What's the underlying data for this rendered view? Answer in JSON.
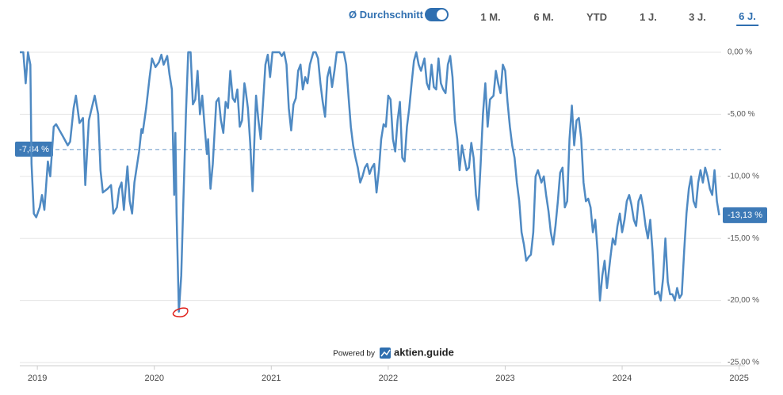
{
  "toolbar": {
    "average_toggle": "Ø Durchschnitt",
    "ranges": [
      "1 M.",
      "6 M.",
      "YTD",
      "1 J.",
      "3 J.",
      "6 J."
    ]
  },
  "footer": {
    "powered_by": "Powered by",
    "brand": "aktien.guide"
  },
  "chart_data": {
    "type": "line",
    "x": [
      2018.85,
      2018.88,
      2018.9,
      2018.92,
      2018.94,
      2018.95,
      2018.97,
      2018.99,
      2019.02,
      2019.04,
      2019.06,
      2019.09,
      2019.11,
      2019.14,
      2019.16,
      2019.19,
      2019.22,
      2019.26,
      2019.28,
      2019.31,
      2019.33,
      2019.36,
      2019.39,
      2019.41,
      2019.44,
      2019.47,
      2019.49,
      2019.52,
      2019.54,
      2019.56,
      2019.6,
      2019.63,
      2019.65,
      2019.68,
      2019.7,
      2019.72,
      2019.74,
      2019.77,
      2019.79,
      2019.81,
      2019.83,
      2019.87,
      2019.89,
      2019.9,
      2019.93,
      2019.96,
      2019.98,
      2020.01,
      2020.04,
      2020.06,
      2020.08,
      2020.11,
      2020.13,
      2020.15,
      2020.17,
      2020.18,
      2020.19,
      2020.21,
      2020.23,
      2020.25,
      2020.27,
      2020.29,
      2020.31,
      2020.33,
      2020.35,
      2020.37,
      2020.39,
      2020.41,
      2020.43,
      2020.45,
      2020.46,
      2020.48,
      2020.5,
      2020.53,
      2020.55,
      2020.57,
      2020.59,
      2020.61,
      2020.63,
      2020.65,
      2020.67,
      2020.69,
      2020.71,
      2020.73,
      2020.75,
      2020.77,
      2020.78,
      2020.8,
      2020.82,
      2020.84,
      2020.86,
      2020.87,
      2020.89,
      2020.91,
      2020.93,
      2020.95,
      2020.97,
      2020.99,
      2021.01,
      2021.03,
      2021.05,
      2021.07,
      2021.09,
      2021.11,
      2021.13,
      2021.15,
      2021.17,
      2021.19,
      2021.21,
      2021.23,
      2021.25,
      2021.27,
      2021.29,
      2021.31,
      2021.33,
      2021.36,
      2021.38,
      2021.4,
      2021.42,
      2021.44,
      2021.46,
      2021.48,
      2021.5,
      2021.52,
      2021.54,
      2021.56,
      2021.58,
      2021.6,
      2021.62,
      2021.64,
      2021.66,
      2021.68,
      2021.7,
      2021.72,
      2021.74,
      2021.76,
      2021.78,
      2021.8,
      2021.82,
      2021.84,
      2021.86,
      2021.88,
      2021.9,
      2021.92,
      2021.94,
      2021.96,
      2021.98,
      2022.0,
      2022.02,
      2022.04,
      2022.06,
      2022.08,
      2022.1,
      2022.12,
      2022.14,
      2022.16,
      2022.18,
      2022.2,
      2022.22,
      2022.24,
      2022.26,
      2022.28,
      2022.31,
      2022.33,
      2022.35,
      2022.37,
      2022.39,
      2022.41,
      2022.43,
      2022.45,
      2022.47,
      2022.49,
      2022.51,
      2022.53,
      2022.55,
      2022.57,
      2022.59,
      2022.61,
      2022.63,
      2022.65,
      2022.67,
      2022.69,
      2022.71,
      2022.73,
      2022.75,
      2022.77,
      2022.79,
      2022.81,
      2022.83,
      2022.85,
      2022.87,
      2022.9,
      2022.92,
      2022.94,
      2022.96,
      2022.98,
      2023.0,
      2023.02,
      2023.04,
      2023.06,
      2023.08,
      2023.1,
      2023.12,
      2023.14,
      2023.16,
      2023.18,
      2023.2,
      2023.22,
      2023.24,
      2023.26,
      2023.28,
      2023.31,
      2023.33,
      2023.35,
      2023.37,
      2023.39,
      2023.41,
      2023.43,
      2023.45,
      2023.47,
      2023.49,
      2023.51,
      2023.53,
      2023.55,
      2023.57,
      2023.59,
      2023.61,
      2023.63,
      2023.65,
      2023.67,
      2023.69,
      2023.71,
      2023.73,
      2023.75,
      2023.77,
      2023.79,
      2023.81,
      2023.83,
      2023.85,
      2023.87,
      2023.9,
      2023.92,
      2023.94,
      2023.96,
      2023.98,
      2024.0,
      2024.02,
      2024.04,
      2024.06,
      2024.08,
      2024.1,
      2024.12,
      2024.14,
      2024.16,
      2024.18,
      2024.2,
      2024.22,
      2024.24,
      2024.26,
      2024.28,
      2024.31,
      2024.33,
      2024.35,
      2024.37,
      2024.39,
      2024.41,
      2024.43,
      2024.45,
      2024.47,
      2024.49,
      2024.51,
      2024.53,
      2024.55,
      2024.57,
      2024.59,
      2024.61,
      2024.63,
      2024.65,
      2024.67,
      2024.69,
      2024.71,
      2024.73,
      2024.75,
      2024.77,
      2024.79,
      2024.81,
      2024.83
    ],
    "series": [
      {
        "color": "#4f8ac3",
        "values": [
          0,
          0,
          -2.5,
          0,
          -1,
          -9,
          -13,
          -13.3,
          -12.5,
          -11.5,
          -12.7,
          -8.8,
          -10,
          -6,
          -5.8,
          -6.3,
          -6.8,
          -7.5,
          -7.2,
          -4.5,
          -3.5,
          -5.7,
          -5.3,
          -10.7,
          -5.5,
          -4.3,
          -3.5,
          -5,
          -9.5,
          -11.3,
          -11,
          -10.7,
          -13,
          -12.5,
          -11,
          -10.5,
          -12.7,
          -9.2,
          -12,
          -13,
          -10.5,
          -8,
          -6.2,
          -6.5,
          -4.5,
          -2,
          -0.5,
          -1.2,
          -0.8,
          -0.2,
          -1,
          -0.3,
          -1.8,
          -3,
          -11.5,
          -6.5,
          -13,
          -20.9,
          -18,
          -11.5,
          -5,
          0,
          0,
          -4.2,
          -3.8,
          -1.5,
          -5,
          -3.5,
          -6,
          -8.2,
          -7,
          -11,
          -9,
          -4,
          -3.7,
          -5.5,
          -6.5,
          -4,
          -4.5,
          -1.5,
          -3.7,
          -4,
          -3,
          -6,
          -5.5,
          -2.5,
          -3,
          -4.5,
          -7.3,
          -11.2,
          -6,
          -3.5,
          -5.5,
          -7,
          -4,
          -1,
          -0.2,
          -2,
          0,
          0,
          0,
          0,
          -0.3,
          0,
          -1,
          -4.5,
          -6.3,
          -4.2,
          -3.7,
          -1.5,
          -1,
          -3,
          -2,
          -2.5,
          -1,
          0,
          0,
          -0.5,
          -2.5,
          -4,
          -5.2,
          -2,
          -1.2,
          -2.8,
          -1.5,
          0,
          0,
          0,
          0,
          -1,
          -3.5,
          -6,
          -7.5,
          -8.5,
          -9.3,
          -10.5,
          -10,
          -9.3,
          -9,
          -9.8,
          -9.3,
          -9,
          -11.3,
          -9.5,
          -7,
          -5.8,
          -6,
          -3.5,
          -3.8,
          -7,
          -8,
          -5.5,
          -4,
          -8.5,
          -8.8,
          -6,
          -4.5,
          -2.5,
          -0.7,
          0,
          -1,
          -1.5,
          -0.5,
          -2.5,
          -3,
          -1,
          -2.8,
          -3,
          -0.5,
          -2.5,
          -3,
          -3.3,
          -1,
          -0.3,
          -2,
          -5.5,
          -7,
          -9.5,
          -7.5,
          -8.5,
          -9.5,
          -9.3,
          -7.3,
          -8.5,
          -11.5,
          -12.7,
          -9,
          -5,
          -2.5,
          -6,
          -3.8,
          -3.5,
          -1.5,
          -2.5,
          -3.3,
          -1,
          -1.5,
          -4,
          -6,
          -7.5,
          -8.5,
          -10.5,
          -12,
          -14.5,
          -15.5,
          -16.8,
          -16.5,
          -16.3,
          -14.5,
          -10,
          -9.5,
          -10.5,
          -10,
          -11.5,
          -12.8,
          -14.5,
          -15.5,
          -14,
          -12,
          -9.7,
          -9.3,
          -12.5,
          -12,
          -7,
          -4.3,
          -7.5,
          -5.5,
          -5.3,
          -7,
          -10.5,
          -12,
          -11.8,
          -12.5,
          -14.5,
          -13.5,
          -16,
          -20,
          -18,
          -16.8,
          -19,
          -16.5,
          -15,
          -15.5,
          -14,
          -13,
          -14.5,
          -13.5,
          -12,
          -11.5,
          -12.3,
          -13.5,
          -14,
          -12,
          -11.5,
          -12.5,
          -14,
          -15,
          -13.5,
          -16,
          -19.5,
          -19.3,
          -20,
          -18.2,
          -15,
          -18.5,
          -19.5,
          -19.5,
          -20,
          -19,
          -19.8,
          -19.5,
          -16,
          -13,
          -11,
          -10,
          -12,
          -12.5,
          -10.5,
          -9.5,
          -10.5,
          -9.3,
          -10,
          -11,
          -11.5,
          -9.5,
          -12,
          -13.13
        ]
      }
    ],
    "end_label": "-13,13 %",
    "average": {
      "value": -7.84,
      "label": "-7,84 %",
      "color": "#3d7ab7"
    },
    "xlim": [
      2018.85,
      2025.05
    ],
    "xticks": [
      2019,
      2020,
      2021,
      2022,
      2023,
      2024,
      2025
    ],
    "ylim": [
      -25,
      0
    ],
    "yticks": [
      {
        "value": 0,
        "label": "0,00 %"
      },
      {
        "value": -5,
        "label": "-5,00 %"
      },
      {
        "value": -10,
        "label": "-10,00 %"
      },
      {
        "value": -15,
        "label": "-15,00 %"
      },
      {
        "value": -20,
        "label": "-20,00 %"
      },
      {
        "value": -25,
        "label": "-25,00 %"
      }
    ],
    "grid": true
  }
}
